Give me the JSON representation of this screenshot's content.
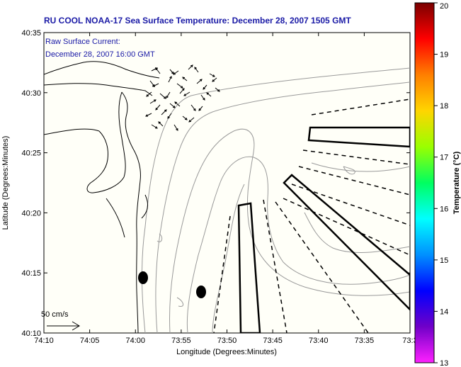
{
  "title": "RU COOL  NOAA-17  Sea Surface Temperature:  December 28, 2007 1505 GMT",
  "annotation": {
    "line1": "Raw Surface Current:",
    "line2": "December 28, 2007 16:00 GMT"
  },
  "scale_label": "50 cm/s",
  "x_axis": {
    "label": "Longitude (Degrees:Minutes)",
    "ticks": [
      "74:10",
      "74:05",
      "74:00",
      "73:55",
      "73:50",
      "73:45",
      "73:40",
      "73:35",
      "73:3"
    ]
  },
  "y_axis": {
    "label": "Latitude (Degrees:Minutes)",
    "ticks": [
      "40:35",
      "40:30",
      "40:25",
      "40:20",
      "40:15",
      "40:10"
    ]
  },
  "colorbar": {
    "label": "Temperature (°C)",
    "ticks": [
      "20",
      "19",
      "18",
      "17",
      "16",
      "15",
      "14",
      "13"
    ],
    "colors": [
      "#7a0000",
      "#ff0000",
      "#ff7f00",
      "#ffd500",
      "#9aff00",
      "#00ff60",
      "#00ffff",
      "#0090ff",
      "#0000ff",
      "#7000c8",
      "#ff20ff"
    ]
  },
  "map": {
    "land_color": "#fffff8",
    "coast_color": "#000000",
    "contour_color": "#9a9a9a"
  }
}
